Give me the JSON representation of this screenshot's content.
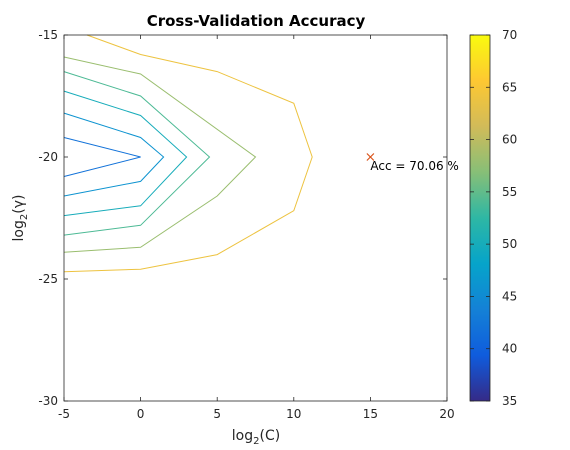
{
  "chart_data": {
    "type": "contour",
    "title": "Cross-Validation Accuracy",
    "xlabel": {
      "base": "log",
      "sub": "2",
      "arg": "(C)"
    },
    "ylabel": {
      "base": "log",
      "sub": "2",
      "arg": "(γ)"
    },
    "xlim": [
      -5,
      20
    ],
    "ylim": [
      -30,
      -15
    ],
    "xticks": [
      -5,
      0,
      5,
      10,
      15,
      20
    ],
    "yticks": [
      -30,
      -25,
      -20,
      -15
    ],
    "colorbar": {
      "range": [
        35,
        70
      ],
      "ticks": [
        35,
        40,
        45,
        50,
        55,
        60,
        65,
        70
      ],
      "colors": [
        "#352a87",
        "#0f5cdd",
        "#1481d6",
        "#06a4ca",
        "#2eb7a4",
        "#87bf77",
        "#d1bb59",
        "#fec832",
        "#f9fb0e"
      ]
    },
    "contours": [
      {
        "level": 42,
        "points": [
          [
            -5,
            -19.2
          ],
          [
            0,
            -20.0
          ],
          [
            -5,
            -20.8
          ]
        ]
      },
      {
        "level": 46,
        "points": [
          [
            -5,
            -18.2
          ],
          [
            0,
            -19.2
          ],
          [
            1.5,
            -20.0
          ],
          [
            0,
            -21.0
          ],
          [
            -5,
            -21.6
          ]
        ]
      },
      {
        "level": 50,
        "points": [
          [
            -5,
            -17.3
          ],
          [
            0,
            -18.3
          ],
          [
            3,
            -20.0
          ],
          [
            0,
            -22.0
          ],
          [
            -5,
            -22.4
          ]
        ]
      },
      {
        "level": 54,
        "points": [
          [
            -5,
            -16.5
          ],
          [
            0,
            -17.5
          ],
          [
            4.5,
            -20.0
          ],
          [
            0,
            -22.8
          ],
          [
            -5,
            -23.2
          ]
        ]
      },
      {
        "level": 58,
        "points": [
          [
            -5,
            -15.9
          ],
          [
            0,
            -16.6
          ],
          [
            7.5,
            -20.0
          ],
          [
            5,
            -21.6
          ],
          [
            0,
            -23.7
          ],
          [
            -5,
            -23.9
          ]
        ]
      },
      {
        "level": 64,
        "points": [
          [
            -3.5,
            -15.0
          ],
          [
            0,
            -15.8
          ],
          [
            5,
            -16.5
          ],
          [
            10,
            -17.8
          ],
          [
            11.2,
            -20.0
          ],
          [
            10,
            -22.2
          ],
          [
            5,
            -24.0
          ],
          [
            0,
            -24.6
          ],
          [
            -5,
            -24.7
          ]
        ]
      }
    ],
    "best_point": {
      "x": 15,
      "y": -20,
      "label": "Acc = 70.06 %"
    }
  }
}
